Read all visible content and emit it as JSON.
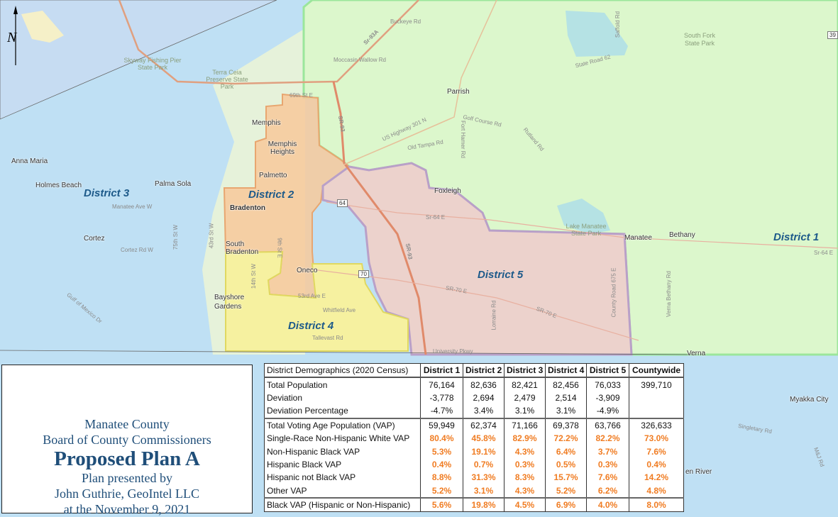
{
  "map": {
    "districts": [
      {
        "label": "District 1",
        "color": "#dcf7cc"
      },
      {
        "label": "District 2",
        "color": "#f7c99a"
      },
      {
        "label": "District 3",
        "color": "#bfe0f4"
      },
      {
        "label": "District 4",
        "color": "#f6f1a0"
      },
      {
        "label": "District 5",
        "color": "#ecd2cc"
      }
    ],
    "places": [
      "Anna Maria",
      "Holmes Beach",
      "Palma Sola",
      "Cortez",
      "Memphis",
      "Memphis Heights",
      "Palmetto",
      "Bradenton",
      "South Bradenton",
      "Oneco",
      "Bayshore Gardens",
      "Parrish",
      "Foxleigh",
      "Manatee",
      "Bethany",
      "Myakka City",
      "Verna",
      "Lake Manatee State Park",
      "South Fork State Park",
      "Terra Ceia Preserve State Park",
      "Skyway Fishing Pier State Park"
    ],
    "roads": [
      "Sr-93A",
      "Buckeye Rd",
      "Moccasin Wallow Rd",
      "69th St E",
      "SR-93",
      "US Highway 301 N",
      "Old Tampa Rd",
      "Golf Course Rd",
      "Fort Hamer Rd",
      "Rutland Rd",
      "State Road 62",
      "Saffold Rd",
      "Sr-64 E",
      "Sr-64 E",
      "SR-70 E",
      "SR-70 E",
      "SR-93",
      "Lorraine Rd",
      "County Road 675 E",
      "Verna Bethany Rd",
      "Manatee Ave W",
      "Cortez Rd W",
      "75th St W",
      "43rd St W",
      "14th St W",
      "Whitfield Ave",
      "Tallevast Rd",
      "53rd Ave E",
      "Gulf of Mexico Dr",
      "Singletary Rd",
      "M&J Rd",
      "University Pkwy",
      "9th St E",
      "en River"
    ],
    "shields": [
      "64",
      "70",
      "39"
    ],
    "north_arrow": "N",
    "colors": {
      "accent_orange": "#f07c22",
      "title_blue": "#1f4e79"
    }
  },
  "title": {
    "line1": "Manatee County",
    "line2": "Board of County Commissioners",
    "line3": "Proposed Plan A",
    "line4": "Plan presented by",
    "line5": "John Guthrie, GeoIntel LLC",
    "line6": "at the November 9, 2021"
  },
  "table": {
    "headers": [
      "District Demographics (2020 Census)",
      "District 1",
      "District 2",
      "District 3",
      "District 4",
      "District 5",
      "Countywide"
    ],
    "rows": [
      {
        "label": "Total Population",
        "values": [
          "76,164",
          "82,636",
          "82,421",
          "82,456",
          "76,033",
          "399,710"
        ]
      },
      {
        "label": "Deviation",
        "values": [
          "-3,778",
          "2,694",
          "2,479",
          "2,514",
          "-3,909",
          ""
        ]
      },
      {
        "label": "Deviation Percentage",
        "values": [
          "-4.7%",
          "3.4%",
          "3.1%",
          "3.1%",
          "-4.9%",
          ""
        ]
      },
      {
        "label": "Total Voting Age Population (VAP)",
        "values": [
          "59,949",
          "62,374",
          "71,166",
          "69,378",
          "63,766",
          "326,633"
        ]
      },
      {
        "label": "Single-Race Non-Hispanic White VAP",
        "values": [
          "80.4%",
          "45.8%",
          "82.9%",
          "72.2%",
          "82.2%",
          "73.0%"
        ]
      },
      {
        "label": "Non-Hispanic Black VAP",
        "values": [
          "5.3%",
          "19.1%",
          "4.3%",
          "6.4%",
          "3.7%",
          "7.6%"
        ]
      },
      {
        "label": "Hispanic Black VAP",
        "values": [
          "0.4%",
          "0.7%",
          "0.3%",
          "0.5%",
          "0.3%",
          "0.4%"
        ]
      },
      {
        "label": "Hispanic not Black VAP",
        "values": [
          "8.8%",
          "31.3%",
          "8.3%",
          "15.7%",
          "7.6%",
          "14.2%"
        ]
      },
      {
        "label": "Other VAP",
        "values": [
          "5.2%",
          "3.1%",
          "4.3%",
          "5.2%",
          "6.2%",
          "4.8%"
        ]
      },
      {
        "label": "Black VAP (Hispanic or Non-Hispanic)",
        "values": [
          "5.6%",
          "19.8%",
          "4.5%",
          "6.9%",
          "4.0%",
          "8.0%"
        ]
      }
    ]
  }
}
